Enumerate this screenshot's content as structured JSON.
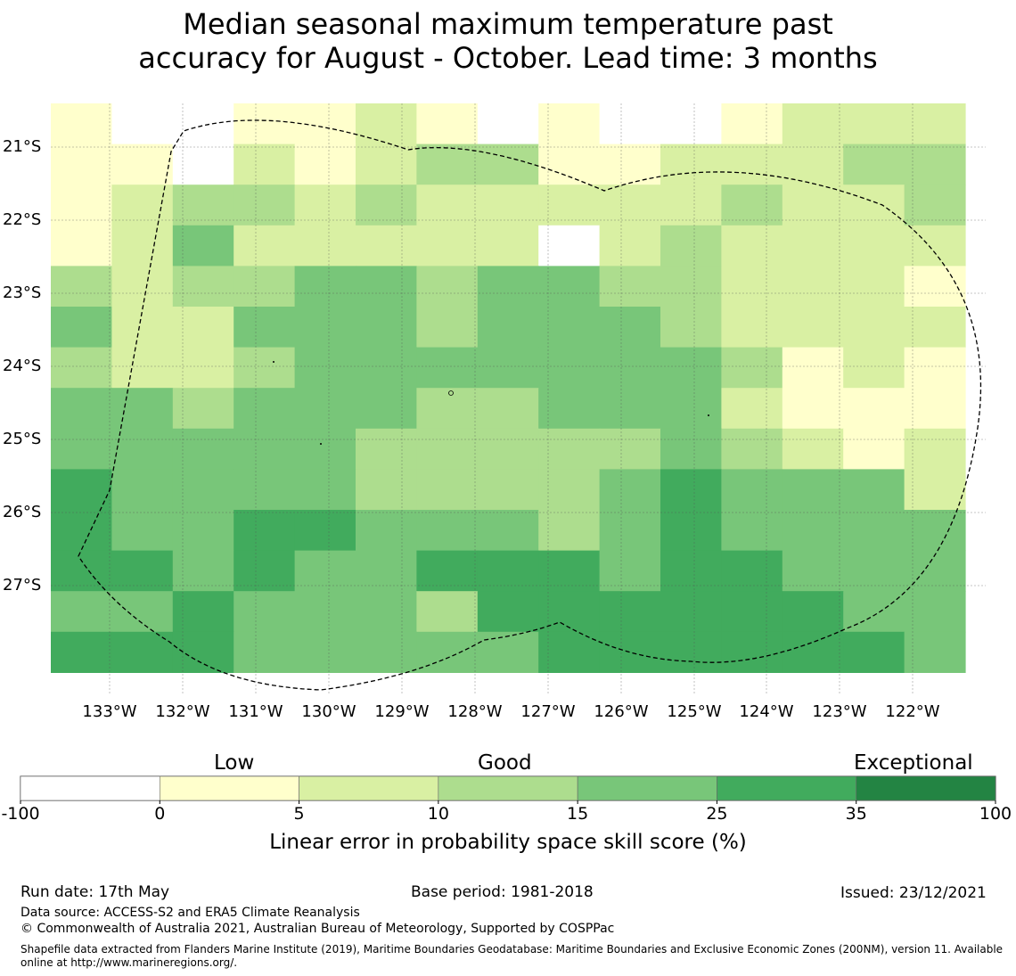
{
  "title_line1": "Median seasonal maximum temperature past",
  "title_line2": "accuracy for August - October. Lead time: 3 months",
  "chart_data": {
    "type": "heatmap",
    "x_tick_labels": [
      "133°W",
      "132°W",
      "131°W",
      "130°W",
      "129°W",
      "128°W",
      "127°W",
      "126°W",
      "125°W",
      "124°W",
      "123°W",
      "122°W"
    ],
    "y_tick_labels": [
      "21°S",
      "22°S",
      "23°S",
      "24°S",
      "25°S",
      "26°S",
      "27°S"
    ],
    "cell_value_classes": [
      [
        1,
        0,
        0,
        1,
        1,
        2,
        1,
        0,
        1,
        0,
        0,
        1,
        2,
        2,
        2
      ],
      [
        1,
        1,
        0,
        2,
        1,
        2,
        3,
        3,
        1,
        1,
        2,
        2,
        2,
        3,
        3
      ],
      [
        1,
        2,
        3,
        3,
        2,
        3,
        2,
        2,
        2,
        2,
        2,
        3,
        2,
        2,
        3
      ],
      [
        1,
        2,
        4,
        2,
        2,
        2,
        2,
        2,
        0,
        2,
        3,
        2,
        2,
        2,
        2
      ],
      [
        3,
        2,
        3,
        3,
        4,
        4,
        3,
        4,
        4,
        3,
        3,
        2,
        2,
        2,
        1
      ],
      [
        4,
        2,
        2,
        4,
        4,
        4,
        3,
        4,
        4,
        4,
        3,
        2,
        2,
        2,
        2
      ],
      [
        3,
        2,
        2,
        3,
        4,
        4,
        4,
        4,
        4,
        4,
        4,
        3,
        1,
        2,
        1
      ],
      [
        4,
        4,
        3,
        4,
        4,
        4,
        3,
        3,
        4,
        4,
        4,
        2,
        1,
        1,
        1
      ],
      [
        4,
        4,
        4,
        4,
        4,
        3,
        3,
        3,
        3,
        3,
        4,
        3,
        2,
        1,
        2
      ],
      [
        5,
        4,
        4,
        4,
        4,
        3,
        3,
        3,
        3,
        4,
        5,
        4,
        4,
        4,
        2
      ],
      [
        5,
        4,
        4,
        5,
        5,
        4,
        4,
        4,
        3,
        4,
        5,
        4,
        4,
        4,
        4
      ],
      [
        5,
        5,
        4,
        5,
        4,
        4,
        5,
        5,
        5,
        4,
        5,
        5,
        4,
        4,
        4
      ],
      [
        4,
        4,
        5,
        4,
        4,
        4,
        3,
        5,
        5,
        5,
        5,
        5,
        5,
        4,
        4
      ],
      [
        5,
        5,
        5,
        4,
        4,
        4,
        4,
        4,
        5,
        5,
        5,
        5,
        5,
        5,
        4
      ]
    ],
    "colorbar": {
      "title": "Linear error in probability space skill score (%)",
      "tick_labels": [
        "-100",
        "0",
        "5",
        "10",
        "15",
        "25",
        "35",
        "100"
      ],
      "category_labels": [
        "Low",
        "Good",
        "Exceptional"
      ],
      "colors": [
        "#ffffff",
        "#ffffcc",
        "#d9f0a3",
        "#addd8e",
        "#78c679",
        "#41ab5d",
        "#238443"
      ]
    }
  },
  "footer": {
    "run_date": "Run date: 17th May",
    "base_period": "Base period: 1981-2018",
    "issued": "Issued: 23/12/2021",
    "data_source": "Data source: ACCESS-S2 and ERA5 Climate Reanalysis",
    "copyright": "© Commonwealth of Australia 2021, Australian Bureau of Meteorology, Supported by COSPPac",
    "shapefile": "Shapefile data extracted from Flanders Marine Institute (2019), Maritime Boundaries Geodatabase: Maritime Boundaries and Exclusive Economic Zones (200NM), version 11. Available online at http://www.marineregions.org/."
  }
}
